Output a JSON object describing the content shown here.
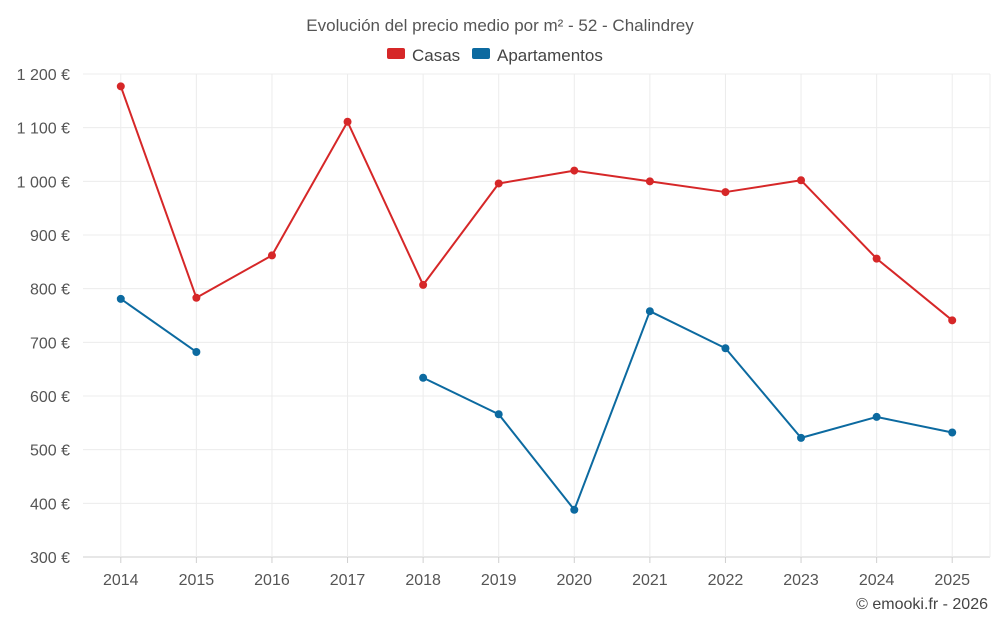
{
  "chart_data": {
    "type": "line",
    "title": "Evolución del precio medio por m² - 52 - Chalindrey",
    "categories": [
      "2014",
      "2015",
      "2016",
      "2017",
      "2018",
      "2019",
      "2020",
      "2021",
      "2022",
      "2023",
      "2024",
      "2025"
    ],
    "series": [
      {
        "name": "Casas",
        "color": "#d62728",
        "values": [
          1177,
          783,
          862,
          1111,
          807,
          996,
          1020,
          1000,
          980,
          1002,
          856,
          741
        ]
      },
      {
        "name": "Apartamentos",
        "color": "#0c6aa0",
        "values": [
          781,
          682,
          null,
          null,
          634,
          566,
          388,
          758,
          689,
          522,
          561,
          532
        ]
      }
    ],
    "ylim": [
      300,
      1200
    ],
    "yticks": [
      300,
      400,
      500,
      600,
      700,
      800,
      900,
      1000,
      1100,
      1200
    ],
    "ytick_labels": [
      "300 €",
      "400 €",
      "500 €",
      "600 €",
      "700 €",
      "800 €",
      "900 €",
      "1 000 €",
      "1 100 €",
      "1 200 €"
    ],
    "xlabel": "",
    "ylabel": "",
    "grid": true,
    "legend_position": "top-center"
  },
  "credit": "© emooki.fr - 2026"
}
